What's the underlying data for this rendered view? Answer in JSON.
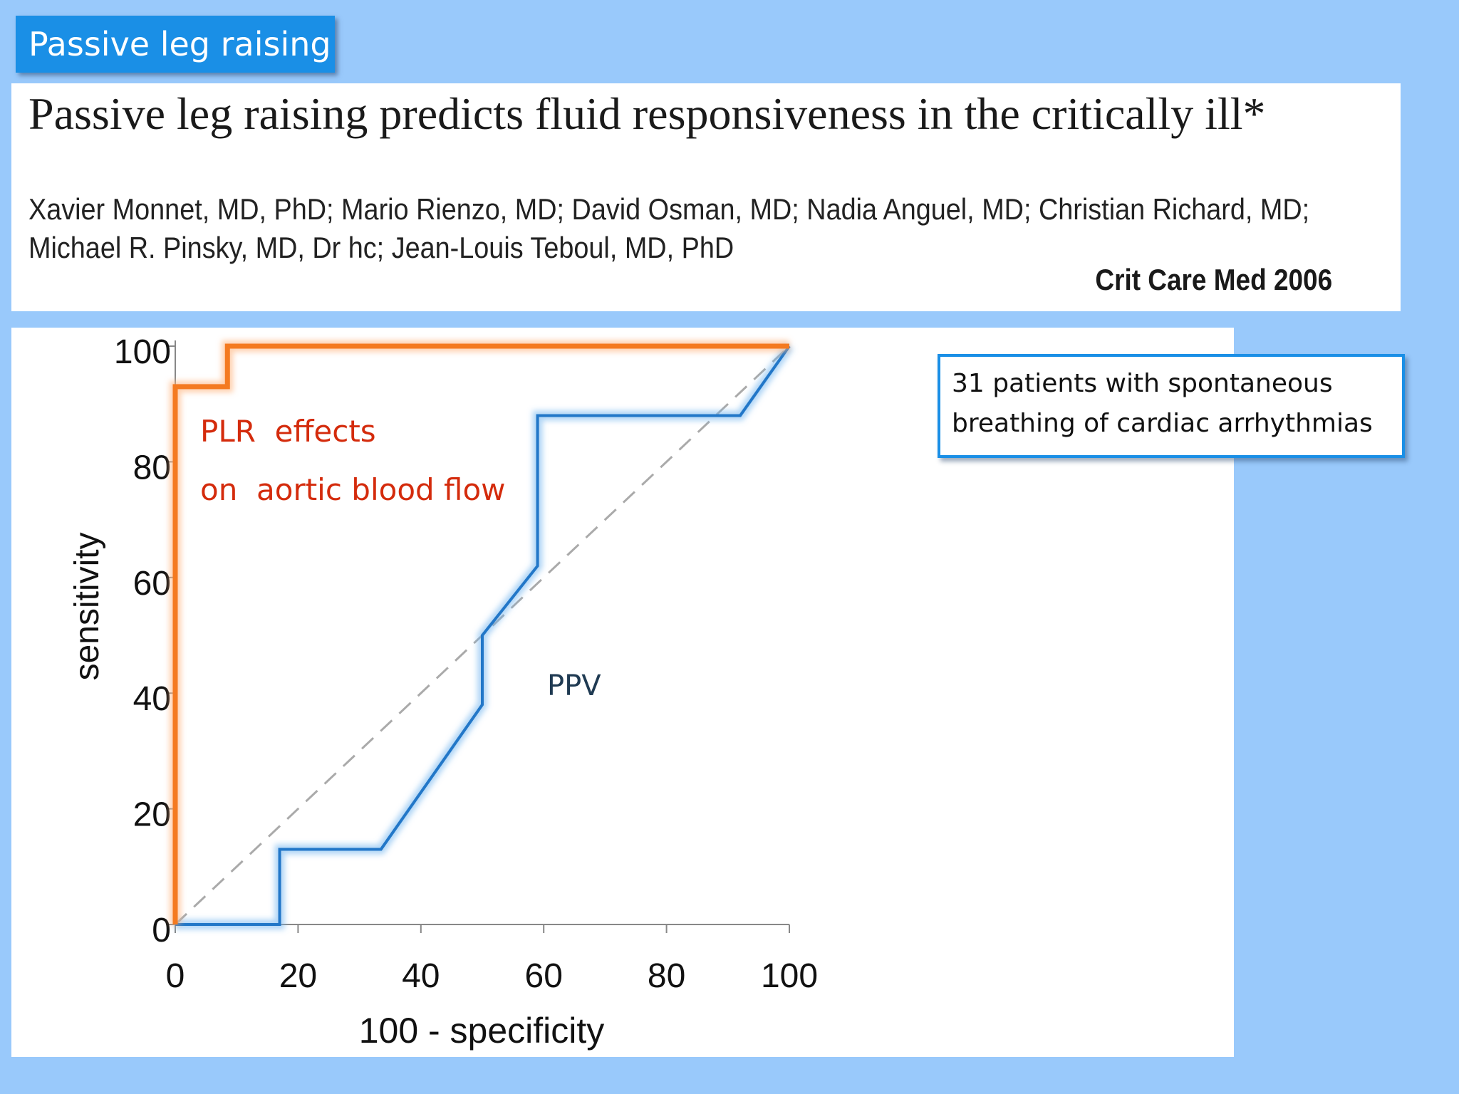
{
  "slide": {
    "title": "Passive leg raising"
  },
  "paper": {
    "title": "Passive leg raising predicts fluid responsiveness in the critically ill*",
    "authors_line1": "Xavier Monnet, MD, PhD; Mario Rienzo, MD; David Osman, MD; Nadia Anguel, MD; Christian Richard, MD;",
    "authors_line2": "Michael R. Pinsky, MD, Dr hc; Jean-Louis Teboul, MD, PhD",
    "journal": "Crit Care Med 2006"
  },
  "note": {
    "line1": "31 patients with spontaneous",
    "line2": "breathing of cardiac arrhythmias"
  },
  "chart_data": {
    "type": "line",
    "xlabel": "100 - specificity",
    "ylabel": "sensitivity",
    "xlim": [
      0,
      100
    ],
    "ylim": [
      0,
      100
    ],
    "x_ticks": [
      0,
      20,
      40,
      60,
      80,
      100
    ],
    "y_ticks": [
      0,
      20,
      40,
      60,
      80,
      100
    ],
    "grid": false,
    "series": [
      {
        "name": "PLR  effects on  aortic blood flow",
        "label_lines": [
          "PLR  effects",
          "on  aortic blood flow"
        ],
        "color": "#f47a20",
        "points": [
          [
            0,
            0
          ],
          [
            0,
            93
          ],
          [
            8.5,
            93
          ],
          [
            8.5,
            100
          ],
          [
            100,
            100
          ]
        ]
      },
      {
        "name": "PPV",
        "label_lines": [
          "PPV"
        ],
        "color": "#2277c8",
        "points": [
          [
            0,
            0
          ],
          [
            17,
            0
          ],
          [
            17,
            13
          ],
          [
            33.5,
            13
          ],
          [
            50,
            38
          ],
          [
            50,
            50
          ],
          [
            59,
            62
          ],
          [
            59,
            88
          ],
          [
            92,
            88
          ],
          [
            100,
            100
          ]
        ]
      },
      {
        "name": "",
        "color": "#aaaaaa",
        "dashed": true,
        "points": [
          [
            0,
            0
          ],
          [
            100,
            100
          ]
        ]
      }
    ]
  },
  "colors": {
    "background": "#99c9fb",
    "badge": "#1a8fe6",
    "plr": "#f47a20",
    "plr_label": "#d42b0c",
    "ppv": "#2277c8",
    "ppv_label": "#1f3a52"
  }
}
